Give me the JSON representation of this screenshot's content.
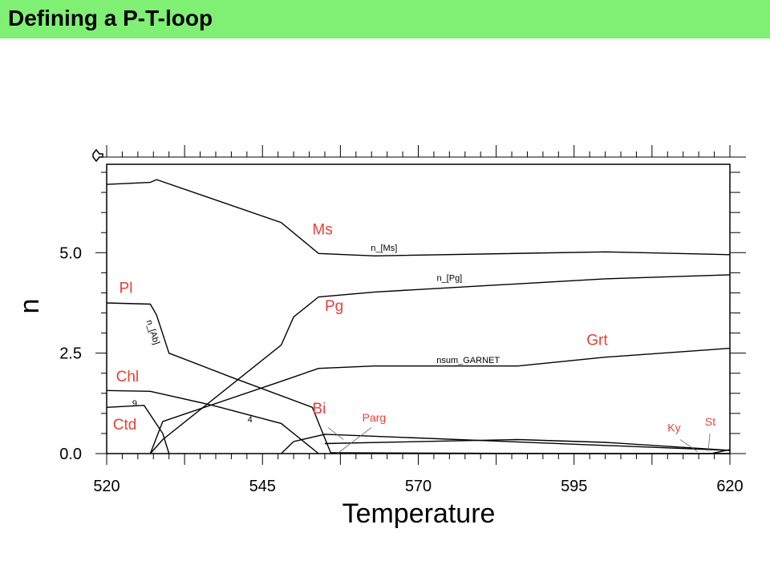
{
  "header": {
    "title": "Defining a P-T-loop",
    "bg_color": "#7ff074"
  },
  "chart_data": {
    "type": "line",
    "xlabel": "Temperature",
    "ylabel": "n",
    "xlim": [
      520,
      620
    ],
    "ylim": [
      0,
      7.2
    ],
    "xticks": [
      520,
      545,
      570,
      595,
      620
    ],
    "xtick_labels": [
      "520",
      "545",
      "570",
      "595",
      "620"
    ],
    "yticks": [
      0,
      2.5,
      5.0
    ],
    "ytick_labels": [
      "0.0",
      "2.5",
      "5.0"
    ],
    "phase_color": "#e8403a",
    "series": [
      {
        "name": "n_[Ms]",
        "x": [
          520,
          527,
          528,
          548,
          554,
          563,
          600,
          620
        ],
        "y": [
          6.7,
          6.75,
          6.82,
          5.75,
          4.98,
          4.92,
          5.02,
          4.95
        ]
      },
      {
        "name": "n_[Pg]",
        "x": [
          527,
          529,
          548,
          550,
          554,
          563,
          600,
          620
        ],
        "y": [
          0.0,
          0.35,
          2.7,
          3.4,
          3.9,
          4.02,
          4.35,
          4.45
        ]
      },
      {
        "name": "nsum_GARNET",
        "x": [
          527,
          529,
          548,
          554,
          563,
          586,
          600,
          620
        ],
        "y": [
          0.0,
          0.8,
          1.8,
          2.12,
          2.18,
          2.18,
          2.4,
          2.62
        ]
      },
      {
        "name": "n_[Ab]",
        "x": [
          520,
          527,
          528,
          530,
          540,
          553,
          556
        ],
        "y": [
          3.75,
          3.72,
          3.45,
          2.5,
          1.9,
          1.15,
          0.0
        ]
      },
      {
        "name": "4",
        "x": [
          520,
          527,
          537,
          548,
          554
        ],
        "y": [
          1.57,
          1.55,
          1.2,
          0.75,
          0.0
        ]
      },
      {
        "name": "9",
        "x": [
          520,
          526,
          529,
          530
        ],
        "y": [
          1.15,
          1.2,
          0.5,
          0.0
        ]
      },
      {
        "name": "",
        "x": [
          548,
          550,
          555,
          620
        ],
        "y": [
          0.0,
          0.3,
          0.48,
          0.08
        ]
      },
      {
        "name": "",
        "x": [
          555,
          586,
          600,
          620
        ],
        "y": [
          0.25,
          0.35,
          0.28,
          0.08
        ]
      },
      {
        "name": "",
        "x": [
          556,
          600,
          620
        ],
        "y": [
          0.02,
          0.0,
          0.0
        ]
      },
      {
        "name": "",
        "x": [
          617,
          620
        ],
        "y": [
          0.0,
          0.1
        ]
      }
    ],
    "phase_labels": [
      {
        "text": "Ms",
        "x": 553,
        "y": 5.45
      },
      {
        "text": "Pg",
        "x": 555,
        "y": 3.55
      },
      {
        "text": "Grt",
        "x": 597,
        "y": 2.7
      },
      {
        "text": "Pl",
        "x": 522,
        "y": 4.0
      },
      {
        "text": "Chl",
        "x": 521.5,
        "y": 1.8
      },
      {
        "text": "Ctd",
        "x": 521,
        "y": 0.6
      },
      {
        "text": "Bi",
        "x": 553,
        "y": 1.0
      },
      {
        "text": "Parg",
        "x": 561,
        "y": 0.8
      },
      {
        "text": "Ky",
        "x": 610,
        "y": 0.55
      },
      {
        "text": "St",
        "x": 616,
        "y": 0.7
      }
    ],
    "curve_labels": [
      {
        "text": "n_[Ms]",
        "x": 564.5,
        "y": 5.05
      },
      {
        "text": "n_[Pg]",
        "x": 575,
        "y": 4.3
      },
      {
        "text": "nsum_GARNET",
        "x": 578,
        "y": 2.25
      },
      {
        "text": "n_[Ab]",
        "x": 527,
        "y": 3.0
      },
      {
        "text": "4",
        "x": 543,
        "y": 0.78
      },
      {
        "text": "9",
        "x": 524.5,
        "y": 1.18
      }
    ]
  }
}
